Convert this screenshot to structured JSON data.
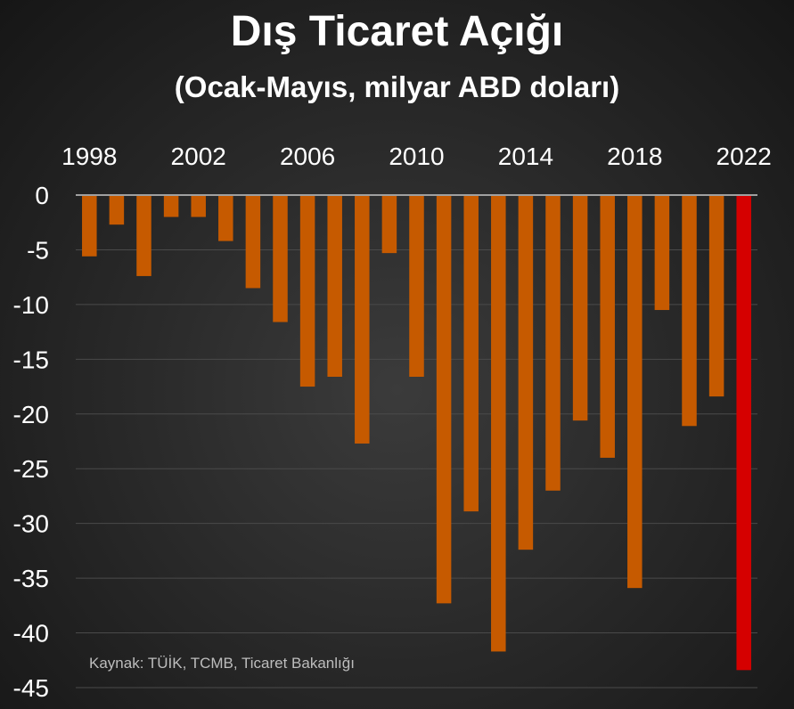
{
  "chart_data": {
    "type": "bar",
    "title": "Dış Ticaret Açığı",
    "subtitle": "(Ocak-Mayıs, milyar ABD doları)",
    "source": "Kaynak: TÜİK, TCMB, Ticaret Bakanlığı",
    "xlabel": "",
    "ylabel": "",
    "categories": [
      "1998",
      "1999",
      "2000",
      "2001",
      "2002",
      "2003",
      "2004",
      "2005",
      "2006",
      "2007",
      "2008",
      "2009",
      "2010",
      "2011",
      "2012",
      "2013",
      "2014",
      "2015",
      "2016",
      "2017",
      "2018",
      "2019",
      "2020",
      "2021",
      "2022"
    ],
    "values": [
      -5.6,
      -2.7,
      -7.4,
      -2.0,
      -2.0,
      -4.2,
      -8.5,
      -11.6,
      -17.5,
      -16.6,
      -22.7,
      -5.3,
      -16.6,
      -37.3,
      -28.9,
      -41.7,
      -32.4,
      -27.0,
      -20.6,
      -24.0,
      -35.9,
      -10.5,
      -21.1,
      -18.4,
      -43.4
    ],
    "highlight_category": "2022",
    "x_tick_labels": [
      "1998",
      "2002",
      "2006",
      "2010",
      "2014",
      "2018",
      "2022"
    ],
    "y_ticks": [
      0,
      -5,
      -10,
      -15,
      -20,
      -25,
      -30,
      -35,
      -40,
      -45
    ],
    "ylim": [
      -45,
      0
    ],
    "x_axis_position": "top",
    "grid": true,
    "colors": {
      "bar": "#c65a00",
      "highlight": "#d50000",
      "grid": "#4a4a4a",
      "axis": "#a0a0a0",
      "text": "#ffffff"
    }
  }
}
